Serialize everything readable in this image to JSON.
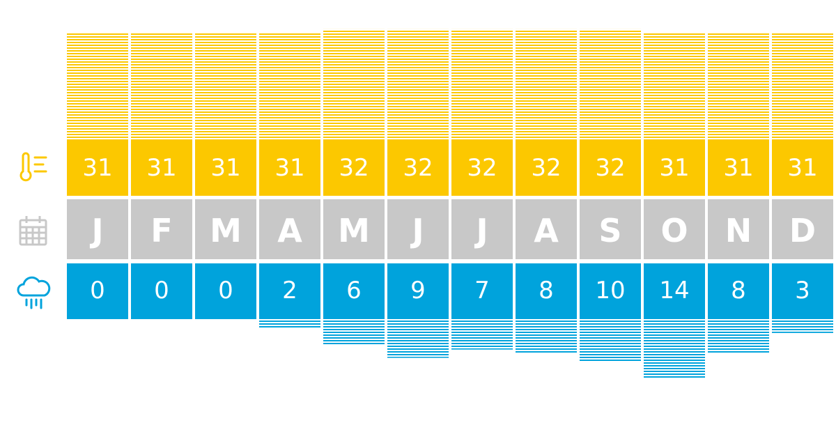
{
  "chart_data": {
    "type": "climate",
    "categories": [
      "J",
      "F",
      "M",
      "A",
      "M",
      "J",
      "J",
      "A",
      "S",
      "O",
      "N",
      "D"
    ],
    "series": [
      {
        "color": "#fcc800",
        "values": [
          31,
          31,
          31,
          31,
          32,
          32,
          32,
          32,
          32,
          31,
          31,
          31
        ]
      },
      {
        "color": "#00a3dc",
        "values": [
          0,
          0,
          0,
          2,
          6,
          9,
          7,
          8,
          10,
          14,
          8,
          3
        ]
      }
    ]
  }
}
